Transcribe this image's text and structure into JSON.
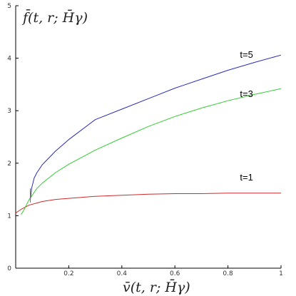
{
  "chart_data": {
    "type": "line",
    "ylabel": "f̄(t, r; H̄γ)",
    "xlabel": "v̄(t, r; H̄γ)",
    "xlim": [
      0,
      1
    ],
    "ylim": [
      0,
      5
    ],
    "x_ticks": [
      "0.2",
      "0.4",
      "0.6",
      "0.8",
      "1"
    ],
    "y_ticks": [
      "0",
      "1",
      "2",
      "3",
      "4",
      "5"
    ],
    "grid": false,
    "colors": {
      "t1": "#cc2b2b",
      "t3": "#33cc33",
      "t5": "#2b2bbb",
      "connector": "#777777"
    },
    "series": [
      {
        "name": "t=1",
        "color_key": "t1",
        "x": [
          0.0,
          0.02,
          0.05,
          0.1,
          0.15,
          0.2,
          0.3,
          0.4,
          0.5,
          0.6,
          0.7,
          0.8,
          0.9,
          1.0
        ],
        "y": [
          1.05,
          1.12,
          1.2,
          1.27,
          1.31,
          1.33,
          1.37,
          1.39,
          1.41,
          1.42,
          1.42,
          1.43,
          1.43,
          1.43
        ]
      },
      {
        "name": "t=3",
        "color_key": "t3",
        "x": [
          0.02,
          0.03,
          0.05,
          0.08,
          0.1,
          0.15,
          0.2,
          0.3,
          0.4,
          0.5,
          0.6,
          0.7,
          0.8,
          0.9,
          1.0
        ],
        "y": [
          1.02,
          1.1,
          1.3,
          1.52,
          1.62,
          1.82,
          1.98,
          2.25,
          2.48,
          2.7,
          2.89,
          3.05,
          3.19,
          3.31,
          3.42
        ]
      },
      {
        "name": "t=5",
        "color_key": "t5",
        "x": [
          0.055,
          0.06,
          0.07,
          0.08,
          0.1,
          0.15,
          0.2,
          0.3,
          0.4,
          0.5,
          0.6,
          0.7,
          0.8,
          0.9,
          1.0
        ],
        "y": [
          1.3,
          1.52,
          1.72,
          1.82,
          1.97,
          2.23,
          2.45,
          2.83,
          3.03,
          3.23,
          3.43,
          3.6,
          3.77,
          3.92,
          4.06
        ]
      }
    ],
    "series_labels": [
      {
        "text": "t=5",
        "x": 0.87,
        "y": 4.01
      },
      {
        "text": "t=3",
        "x": 0.87,
        "y": 3.26
      },
      {
        "text": "t=1",
        "x": 0.87,
        "y": 1.67
      }
    ]
  }
}
